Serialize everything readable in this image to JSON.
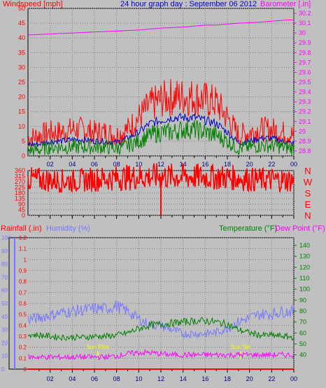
{
  "colors": {
    "wind_gust": "#ff0000",
    "wind_avg": "#0000c0",
    "wind_min": "#008000",
    "barometer": "#ff00ff",
    "direction": "#ff0000",
    "rainfall": "#ff0000",
    "humidity": "#7777ff",
    "temperature": "#008000",
    "dewpoint": "#ff00ff",
    "sun": "#ffff00"
  },
  "chart_data": [
    {
      "type": "line",
      "title": "24 hour graph day : September 06 2012",
      "ylabel_left": "Windspeed [mph]",
      "ylabel_right": "Barometer [.in]",
      "ylim": [
        0,
        50
      ],
      "y2lim": [
        28.75,
        30.25
      ],
      "yticks": [
        "0",
        "5",
        "10",
        "15",
        "20",
        "25",
        "30",
        "35",
        "40",
        "45",
        "50"
      ],
      "y2ticks": [
        "28.8",
        "28.9",
        "29",
        "29.1",
        "29.2",
        "29.3",
        "29.4",
        "29.5",
        "29.6",
        "29.7",
        "29.8",
        "29.9",
        "30",
        "30.1",
        "30.2"
      ],
      "xticks": [
        "02",
        "04",
        "06",
        "08",
        "10",
        "12",
        "14",
        "16",
        "18",
        "20",
        "22",
        "00"
      ],
      "x": [
        0,
        1,
        2,
        3,
        4,
        5,
        6,
        7,
        8,
        9,
        10,
        11,
        12,
        13,
        14,
        15,
        16,
        17,
        18,
        19,
        20,
        21,
        22,
        23,
        24
      ],
      "series": [
        {
          "key": "gust",
          "values": [
            6,
            7,
            8,
            8,
            9,
            9,
            8,
            8,
            7,
            9,
            13,
            17,
            19,
            20,
            20,
            20,
            19,
            18,
            13,
            7,
            8,
            9,
            9,
            8,
            7
          ]
        },
        {
          "key": "average",
          "values": [
            4,
            4,
            5,
            5,
            5.5,
            5.5,
            5,
            5,
            4.5,
            6,
            8,
            11,
            12,
            13,
            13,
            13,
            12,
            11,
            8,
            4.5,
            5,
            6,
            6,
            5,
            4
          ]
        },
        {
          "key": "minimum",
          "values": [
            2,
            2,
            3,
            3,
            3,
            3,
            3,
            3,
            2.5,
            3.5,
            5,
            7,
            8,
            8,
            9,
            9,
            8,
            7,
            5,
            2.5,
            3,
            3.5,
            3.5,
            3,
            2.5
          ]
        },
        {
          "key": "barometer",
          "values": [
            29.98,
            29.985,
            29.99,
            29.995,
            30.0,
            30.005,
            30.01,
            30.015,
            30.02,
            30.025,
            30.03,
            30.04,
            30.05,
            30.055,
            30.06,
            30.07,
            30.08,
            30.08,
            30.09,
            30.1,
            30.105,
            30.11,
            30.12,
            30.13,
            30.135
          ]
        }
      ]
    },
    {
      "type": "line",
      "ylim": [
        0,
        360
      ],
      "yticks": [
        "0",
        "45",
        "90",
        "135",
        "180",
        "225",
        "270",
        "315",
        "360"
      ],
      "compass": [
        "N",
        "W",
        "S",
        "E",
        "N"
      ],
      "xticks": [
        "02",
        "04",
        "06",
        "08",
        "10",
        "12",
        "14",
        "16",
        "18",
        "20",
        "22",
        "00"
      ],
      "x": [
        0,
        1,
        2,
        3,
        4,
        5,
        6,
        7,
        8,
        9,
        10,
        11,
        12,
        13,
        14,
        15,
        16,
        17,
        18,
        19,
        20,
        21,
        22,
        23,
        24
      ],
      "series": [
        {
          "key": "direction",
          "values": [
            290,
            288,
            282,
            278,
            276,
            282,
            290,
            295,
            300,
            305,
            310,
            312,
            313,
            312,
            312,
            311,
            310,
            308,
            305,
            300,
            290,
            285,
            286,
            283,
            280
          ]
        }
      ],
      "spike": {
        "x": 12,
        "from": 310,
        "to": 0
      }
    },
    {
      "type": "line",
      "ylabel_left": "Rainfall (.in)",
      "ylabel_humidity": "Humidity (%)",
      "ylabel_temperature": "Temperature (°F)",
      "ylabel_dewpoint": "Dew Point (°F)",
      "rain_lim": [
        0,
        1.2
      ],
      "rain_ticks": [
        "0",
        "0.1",
        "0.2",
        "0.3",
        "0.4",
        "0.5",
        "0.6",
        "0.7",
        "0.8",
        "0.9",
        "1",
        "1.1",
        "1.2"
      ],
      "humidity_lim": [
        0,
        100
      ],
      "humidity_ticks": [
        "0",
        "10",
        "20",
        "30",
        "40",
        "50",
        "60",
        "70",
        "80",
        "90",
        "100"
      ],
      "temp_lim": [
        27,
        147
      ],
      "temp_ticks": [
        "40",
        "50",
        "60",
        "70",
        "80",
        "90",
        "100",
        "110",
        "120",
        "130",
        "140"
      ],
      "xticks": [
        "02",
        "04",
        "06",
        "08",
        "10",
        "12",
        "14",
        "16",
        "18",
        "20",
        "22",
        "00"
      ],
      "sun_events": [
        {
          "label": "Sun Rise",
          "x": 6.3
        },
        {
          "label": "Sun Set",
          "x": 19.2
        }
      ],
      "x": [
        0,
        1,
        2,
        3,
        4,
        5,
        6,
        7,
        8,
        9,
        10,
        11,
        12,
        13,
        14,
        15,
        16,
        17,
        18,
        19,
        20,
        21,
        22,
        23,
        24
      ],
      "series": [
        {
          "key": "rainfall",
          "values": [
            0,
            0,
            0,
            0,
            0,
            0,
            0,
            0,
            0,
            0,
            0,
            0,
            0,
            0,
            0,
            0,
            0,
            0,
            0,
            0,
            0,
            0,
            0,
            0,
            0
          ]
        },
        {
          "key": "humidity",
          "values": [
            38,
            39,
            41,
            43,
            44,
            45,
            46,
            46,
            48,
            44,
            38,
            34,
            33,
            30,
            27,
            27,
            27,
            28,
            31,
            36,
            39,
            42,
            42,
            44,
            44
          ]
        },
        {
          "key": "temperature",
          "values": [
            59,
            58,
            57,
            56,
            56,
            56,
            57,
            57,
            58,
            60,
            64,
            67,
            68,
            69,
            70,
            71,
            71,
            70,
            68,
            63,
            60,
            58,
            58,
            57,
            56
          ]
        },
        {
          "key": "dewpoint",
          "values": [
            38,
            38,
            38,
            38,
            38,
            38,
            38,
            38,
            39,
            41,
            42,
            42,
            41,
            40,
            40,
            40,
            40,
            40,
            40,
            40,
            40,
            40,
            40,
            40,
            40
          ]
        }
      ]
    }
  ]
}
